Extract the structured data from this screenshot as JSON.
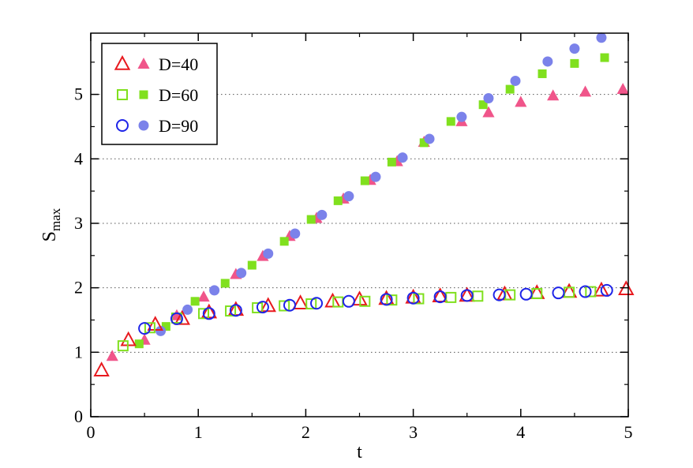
{
  "chart_data": {
    "type": "scatter",
    "title": "",
    "xlabel": "t",
    "ylabel": "S",
    "ylabel_sub": "max",
    "xlim": [
      0,
      5
    ],
    "ylim": [
      0,
      5.95
    ],
    "xticks": [
      "0",
      "1",
      "2",
      "3",
      "4",
      "5"
    ],
    "yticks": [
      "0",
      "1",
      "2",
      "3",
      "4",
      "5"
    ],
    "grid": "horizontal dotted",
    "legend_position": "top-left",
    "series": [
      {
        "name": "D=40",
        "legend_label": "D=40",
        "color": "#e8191e",
        "color_filled": "#f0558a",
        "marker": "triangle",
        "open": {
          "x": [
            0.1,
            0.35,
            0.6,
            0.85,
            1.1,
            1.35,
            1.65,
            1.95,
            2.25,
            2.5,
            2.75,
            3.0,
            3.25,
            3.5,
            3.85,
            4.15,
            4.45,
            4.75,
            4.98
          ],
          "y": [
            0.72,
            1.19,
            1.43,
            1.52,
            1.62,
            1.66,
            1.72,
            1.76,
            1.79,
            1.82,
            1.83,
            1.85,
            1.87,
            1.88,
            1.9,
            1.92,
            1.94,
            1.96,
            1.98
          ]
        },
        "filled": {
          "x": [
            0.2,
            0.5,
            0.8,
            1.05,
            1.35,
            1.6,
            1.85,
            2.1,
            2.35,
            2.6,
            2.85,
            3.1,
            3.45,
            3.7,
            4.0,
            4.3,
            4.6,
            4.95
          ],
          "y": [
            0.94,
            1.19,
            1.57,
            1.86,
            2.21,
            2.49,
            2.8,
            3.08,
            3.38,
            3.67,
            3.96,
            4.26,
            4.58,
            4.72,
            4.88,
            4.98,
            5.04,
            5.08
          ]
        }
      },
      {
        "name": "D=60",
        "legend_label": "D=60",
        "color": "#80e01e",
        "color_filled": "#80e01e",
        "marker": "square",
        "open": {
          "x": [
            0.3,
            0.55,
            0.8,
            1.05,
            1.3,
            1.55,
            1.8,
            2.05,
            2.3,
            2.55,
            2.8,
            3.05,
            3.35,
            3.6,
            3.9,
            4.15,
            4.45,
            4.65
          ],
          "y": [
            1.1,
            1.38,
            1.53,
            1.6,
            1.64,
            1.69,
            1.72,
            1.75,
            1.78,
            1.79,
            1.81,
            1.83,
            1.85,
            1.87,
            1.89,
            1.91,
            1.93,
            1.94
          ]
        },
        "filled": {
          "x": [
            0.45,
            0.7,
            0.97,
            1.25,
            1.5,
            1.8,
            2.05,
            2.3,
            2.55,
            2.8,
            3.1,
            3.35,
            3.65,
            3.9,
            4.2,
            4.5,
            4.78
          ],
          "y": [
            1.13,
            1.4,
            1.79,
            2.07,
            2.35,
            2.72,
            3.06,
            3.35,
            3.66,
            3.95,
            4.25,
            4.58,
            4.84,
            5.08,
            5.32,
            5.48,
            5.57
          ]
        }
      },
      {
        "name": "D=90",
        "legend_label": "D=90",
        "color": "#1e24e8",
        "color_filled": "#7b82ea",
        "marker": "circle",
        "open": {
          "x": [
            0.5,
            0.8,
            1.1,
            1.35,
            1.6,
            1.85,
            2.1,
            2.4,
            2.75,
            3.0,
            3.25,
            3.5,
            3.8,
            4.05,
            4.35,
            4.6,
            4.8
          ],
          "y": [
            1.37,
            1.52,
            1.6,
            1.65,
            1.7,
            1.73,
            1.76,
            1.79,
            1.82,
            1.84,
            1.86,
            1.88,
            1.89,
            1.9,
            1.92,
            1.94,
            1.96
          ]
        },
        "filled": {
          "x": [
            0.65,
            0.9,
            1.15,
            1.4,
            1.65,
            1.9,
            2.15,
            2.4,
            2.65,
            2.9,
            3.15,
            3.45,
            3.7,
            3.95,
            4.25,
            4.5,
            4.75
          ],
          "y": [
            1.33,
            1.66,
            1.96,
            2.23,
            2.53,
            2.84,
            3.13,
            3.42,
            3.72,
            4.02,
            4.31,
            4.65,
            4.94,
            5.21,
            5.51,
            5.71,
            5.88
          ]
        }
      }
    ]
  }
}
